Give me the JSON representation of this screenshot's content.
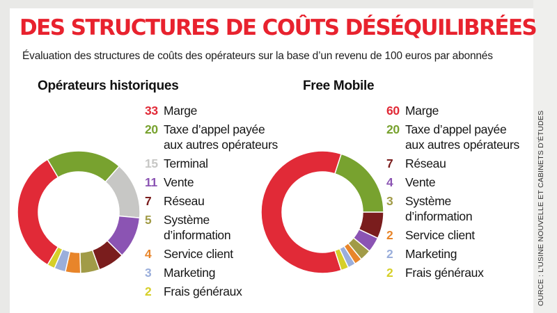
{
  "header": {
    "title": "DES STRUCTURES DE COÛTS DÉSÉQUILIBRÉES",
    "subtitle": "Évaluation des structures de coûts des opérateurs sur la base d’un revenu de 100 euros par abonnés"
  },
  "source": "OURCE : L’USINE NOUVELLE ET CABINETS D’ÉTUDES",
  "chart_data": [
    {
      "type": "pie",
      "title": "Opérateurs historiques",
      "categories": [
        "Marge",
        "Taxe d’appel payée\naux autres opérateurs",
        "Terminal",
        "Vente",
        "Réseau",
        "Système\nd’information",
        "Service client",
        "Marketing",
        "Frais généraux"
      ],
      "values": [
        33,
        20,
        15,
        11,
        7,
        5,
        4,
        3,
        2
      ],
      "colors": [
        "#e12a37",
        "#78a22f",
        "#c7c7c5",
        "#8b54b3",
        "#7a1d1d",
        "#a19b47",
        "#e8852a",
        "#9aaedb",
        "#d6cf29"
      ]
    },
    {
      "type": "pie",
      "title": "Free Mobile",
      "categories": [
        "Marge",
        "Taxe d’appel payée\naux autres opérateurs",
        "Réseau",
        "Vente",
        "Système\nd’information",
        "Service client",
        "Marketing",
        "Frais généraux"
      ],
      "values": [
        60,
        20,
        7,
        4,
        3,
        2,
        2,
        2
      ],
      "colors": [
        "#e12a37",
        "#78a22f",
        "#7a1d1d",
        "#8b54b3",
        "#a19b47",
        "#e8852a",
        "#9aaedb",
        "#d6cf29"
      ]
    }
  ]
}
